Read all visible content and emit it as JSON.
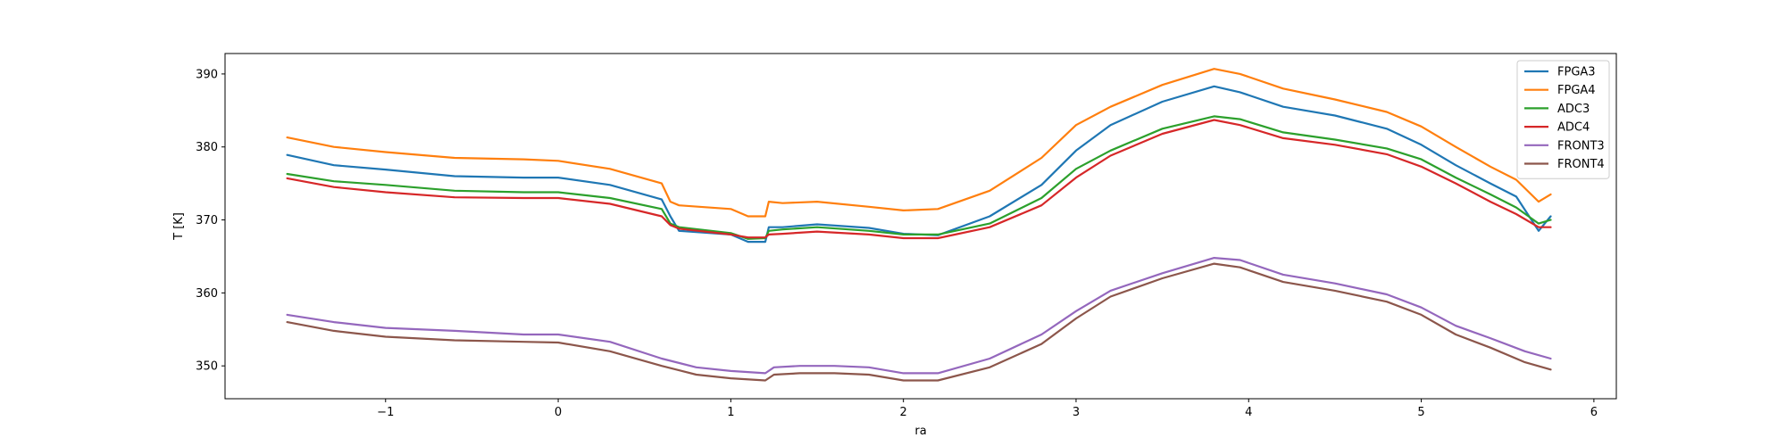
{
  "chart_data": {
    "type": "line",
    "title": "",
    "xlabel": "ra",
    "ylabel": "T [K]",
    "xlim": [
      -1.93,
      6.13
    ],
    "ylim": [
      345.5,
      392.8
    ],
    "xticks": [
      -1,
      0,
      1,
      2,
      3,
      4,
      5,
      6
    ],
    "xtick_labels": [
      "−1",
      "0",
      "1",
      "2",
      "3",
      "4",
      "5",
      "6"
    ],
    "yticks": [
      350,
      360,
      370,
      380,
      390
    ],
    "ytick_labels": [
      "350",
      "360",
      "370",
      "380",
      "390"
    ],
    "grid": false,
    "legend_position": "top-right",
    "series": [
      {
        "name": "FPGA3",
        "color": "#1f77b4",
        "x": [
          -1.57,
          -1.3,
          -1.0,
          -0.6,
          -0.2,
          0.0,
          0.3,
          0.6,
          0.65,
          0.7,
          1.0,
          1.1,
          1.2,
          1.22,
          1.3,
          1.5,
          1.8,
          2.0,
          2.2,
          2.5,
          2.8,
          3.0,
          3.2,
          3.5,
          3.8,
          3.95,
          4.2,
          4.5,
          4.8,
          5.0,
          5.2,
          5.4,
          5.55,
          5.68,
          5.75
        ],
        "y": [
          378.9,
          377.5,
          376.9,
          376.0,
          375.8,
          375.8,
          374.8,
          372.8,
          370.5,
          368.5,
          368.0,
          367.0,
          367.0,
          369.0,
          369.0,
          369.4,
          368.9,
          368.1,
          367.9,
          370.5,
          374.8,
          379.5,
          383.0,
          386.2,
          388.3,
          387.5,
          385.5,
          384.3,
          382.5,
          380.3,
          377.5,
          375.0,
          373.2,
          368.5,
          370.5
        ]
      },
      {
        "name": "FPGA4",
        "color": "#ff7f0e",
        "x": [
          -1.57,
          -1.3,
          -1.0,
          -0.6,
          -0.2,
          0.0,
          0.3,
          0.6,
          0.65,
          0.7,
          1.0,
          1.1,
          1.2,
          1.22,
          1.3,
          1.5,
          1.8,
          2.0,
          2.2,
          2.5,
          2.8,
          3.0,
          3.2,
          3.5,
          3.8,
          3.95,
          4.2,
          4.5,
          4.8,
          5.0,
          5.2,
          5.4,
          5.55,
          5.68,
          5.75
        ],
        "y": [
          381.3,
          380.0,
          379.3,
          378.5,
          378.3,
          378.1,
          377.0,
          375.0,
          372.5,
          372.0,
          371.5,
          370.5,
          370.5,
          372.5,
          372.3,
          372.5,
          371.8,
          371.3,
          371.5,
          374.0,
          378.5,
          383.0,
          385.5,
          388.5,
          390.7,
          390.0,
          388.0,
          386.5,
          384.8,
          382.8,
          380.0,
          377.3,
          375.5,
          372.5,
          373.5
        ]
      },
      {
        "name": "ADC3",
        "color": "#2ca02c",
        "x": [
          -1.57,
          -1.3,
          -1.0,
          -0.6,
          -0.2,
          0.0,
          0.3,
          0.6,
          0.65,
          0.7,
          1.0,
          1.1,
          1.2,
          1.22,
          1.3,
          1.5,
          1.8,
          2.0,
          2.2,
          2.5,
          2.8,
          3.0,
          3.2,
          3.5,
          3.8,
          3.95,
          4.2,
          4.5,
          4.8,
          5.0,
          5.2,
          5.4,
          5.55,
          5.68,
          5.75
        ],
        "y": [
          376.3,
          375.3,
          374.8,
          374.0,
          373.8,
          373.8,
          373.0,
          371.5,
          369.5,
          369.0,
          368.2,
          367.4,
          367.5,
          368.5,
          368.7,
          369.0,
          368.5,
          368.0,
          368.0,
          369.5,
          373.0,
          377.0,
          379.5,
          382.5,
          384.2,
          383.8,
          382.0,
          381.0,
          379.8,
          378.3,
          375.8,
          373.5,
          371.7,
          369.5,
          370.0
        ]
      },
      {
        "name": "ADC4",
        "color": "#d62728",
        "x": [
          -1.57,
          -1.3,
          -1.0,
          -0.6,
          -0.2,
          0.0,
          0.3,
          0.6,
          0.65,
          0.7,
          1.0,
          1.1,
          1.2,
          1.22,
          1.3,
          1.5,
          1.8,
          2.0,
          2.2,
          2.5,
          2.8,
          3.0,
          3.2,
          3.5,
          3.8,
          3.95,
          4.2,
          4.5,
          4.8,
          5.0,
          5.2,
          5.4,
          5.55,
          5.68,
          5.75
        ],
        "y": [
          375.7,
          374.5,
          373.8,
          373.1,
          373.0,
          373.0,
          372.2,
          370.5,
          369.3,
          368.8,
          368.0,
          367.6,
          367.6,
          368.0,
          368.1,
          368.4,
          368.0,
          367.5,
          367.5,
          369.0,
          372.0,
          375.8,
          378.8,
          381.8,
          383.7,
          383.0,
          381.2,
          380.3,
          379.0,
          377.3,
          375.0,
          372.5,
          370.8,
          369.0,
          369.0
        ]
      },
      {
        "name": "FRONT3",
        "color": "#9467bd",
        "x": [
          -1.57,
          -1.3,
          -1.0,
          -0.6,
          -0.2,
          0.0,
          0.3,
          0.6,
          0.8,
          1.0,
          1.2,
          1.25,
          1.4,
          1.6,
          1.8,
          2.0,
          2.2,
          2.5,
          2.8,
          3.0,
          3.2,
          3.5,
          3.8,
          3.95,
          4.2,
          4.5,
          4.8,
          5.0,
          5.2,
          5.4,
          5.6,
          5.75
        ],
        "y": [
          357.0,
          356.0,
          355.2,
          354.8,
          354.3,
          354.3,
          353.3,
          351.0,
          349.8,
          349.3,
          349.0,
          349.8,
          350.0,
          350.0,
          349.8,
          349.0,
          349.0,
          351.0,
          354.3,
          357.5,
          360.3,
          362.7,
          364.8,
          364.5,
          362.5,
          361.3,
          359.8,
          358.0,
          355.5,
          353.8,
          352.0,
          351.0
        ]
      },
      {
        "name": "FRONT4",
        "color": "#8c564b",
        "x": [
          -1.57,
          -1.3,
          -1.0,
          -0.6,
          -0.2,
          0.0,
          0.3,
          0.6,
          0.8,
          1.0,
          1.2,
          1.25,
          1.4,
          1.6,
          1.8,
          2.0,
          2.2,
          2.5,
          2.8,
          3.0,
          3.2,
          3.5,
          3.8,
          3.95,
          4.2,
          4.5,
          4.8,
          5.0,
          5.2,
          5.4,
          5.6,
          5.75
        ],
        "y": [
          356.0,
          354.8,
          354.0,
          353.5,
          353.3,
          353.2,
          352.0,
          350.0,
          348.8,
          348.3,
          348.0,
          348.8,
          349.0,
          349.0,
          348.8,
          348.0,
          348.0,
          349.8,
          353.0,
          356.5,
          359.5,
          362.0,
          364.0,
          363.5,
          361.5,
          360.3,
          358.8,
          357.0,
          354.3,
          352.5,
          350.5,
          349.5
        ]
      }
    ]
  }
}
